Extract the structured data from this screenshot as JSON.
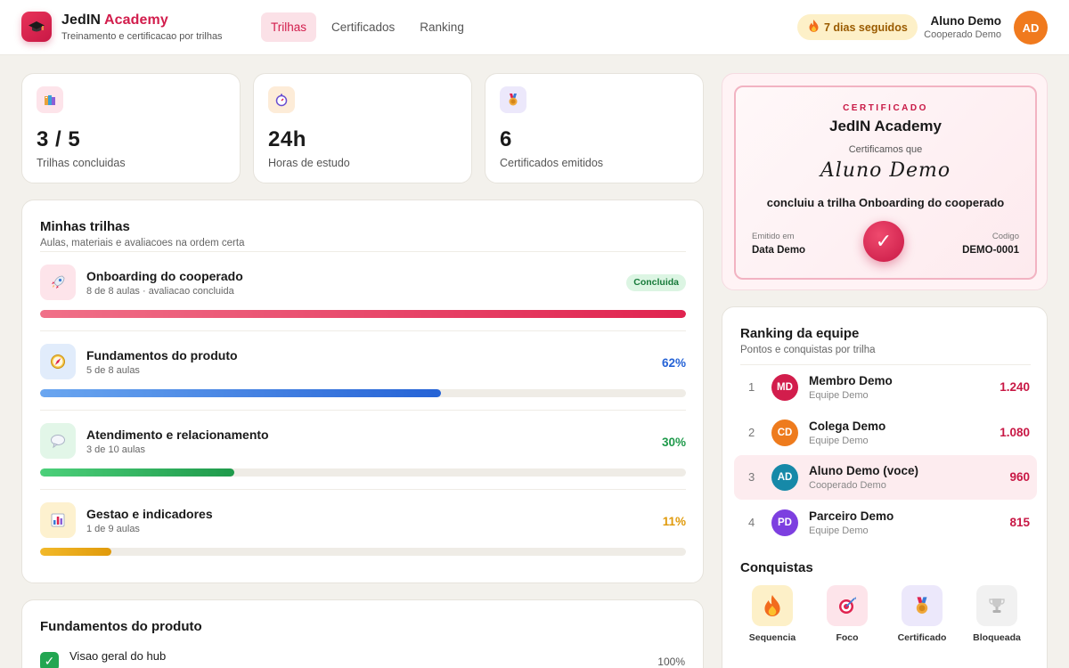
{
  "header": {
    "brand_name": "JedIN",
    "brand_accent": "Academy",
    "brand_subtitle": "Treinamento e certificacao por trilhas",
    "nav": [
      {
        "label": "Trilhas",
        "active": true
      },
      {
        "label": "Certificados",
        "active": false
      },
      {
        "label": "Ranking",
        "active": false
      }
    ],
    "streak": "7 dias seguidos",
    "user_name": "Aluno Demo",
    "user_role": "Cooperado Demo",
    "user_initials": "AD"
  },
  "stats": [
    {
      "value": "3 / 5",
      "label": "Trilhas concluidas",
      "icon": "books-icon"
    },
    {
      "value": "24h",
      "label": "Horas de estudo",
      "icon": "stopwatch-icon"
    },
    {
      "value": "6",
      "label": "Certificados emitidos",
      "icon": "medal-icon"
    }
  ],
  "trails_section": {
    "title": "Minhas trilhas",
    "subtitle": "Aulas, materiais e avaliacoes na ordem certa",
    "items": [
      {
        "title": "Onboarding do cooperado",
        "sub": "8 de 8 aulas · avaliacao concluida",
        "badge": "Concluida",
        "pct": "",
        "progress": 1.0,
        "icon": "rocket-icon",
        "color": "#e0234f"
      },
      {
        "title": "Fundamentos do produto",
        "sub": "5 de 8 aulas",
        "badge": "",
        "pct": "62%",
        "progress": 0.62,
        "icon": "compass-icon",
        "color": "#2563d6"
      },
      {
        "title": "Atendimento e relacionamento",
        "sub": "3 de 10 aulas",
        "badge": "",
        "pct": "30%",
        "progress": 0.3,
        "icon": "speech-bubble-icon",
        "color": "#1f9a4b"
      },
      {
        "title": "Gestao e indicadores",
        "sub": "1 de 9 aulas",
        "badge": "",
        "pct": "11%",
        "progress": 0.11,
        "icon": "bar-chart-icon",
        "color": "#e09a0b"
      }
    ]
  },
  "detail": {
    "title": "Fundamentos do produto",
    "lesson_title": "Visao geral do hub",
    "lesson_pct": "100%"
  },
  "certificate": {
    "kicker": "CERTIFICADO",
    "org": "JedIN Academy",
    "certifies": "Certificamos que",
    "name": "Aluno Demo",
    "line": "concluiu a trilha Onboarding do cooperado",
    "issued_label": "Emitido em",
    "issued_value": "Data Demo",
    "code_label": "Codigo",
    "code_value": "DEMO-0001"
  },
  "ranking": {
    "title": "Ranking da equipe",
    "subtitle": "Pontos e conquistas por trilha",
    "rows": [
      {
        "pos": "1",
        "initials": "MD",
        "name": "Membro Demo",
        "sub": "Equipe Demo",
        "points": "1.240",
        "color": "#d21d4c",
        "me": false
      },
      {
        "pos": "2",
        "initials": "CD",
        "name": "Colega Demo",
        "sub": "Equipe Demo",
        "points": "1.080",
        "color": "#ee7b1d",
        "me": false
      },
      {
        "pos": "3",
        "initials": "AD",
        "name": "Aluno Demo (voce)",
        "sub": "Cooperado Demo",
        "points": "960",
        "color": "#1689a8",
        "me": true
      },
      {
        "pos": "4",
        "initials": "PD",
        "name": "Parceiro Demo",
        "sub": "Equipe Demo",
        "points": "815",
        "color": "#7d3fe0",
        "me": false
      }
    ]
  },
  "achievements": {
    "title": "Conquistas",
    "items": [
      {
        "label": "Sequencia",
        "icon": "fire-icon"
      },
      {
        "label": "Foco",
        "icon": "target-icon"
      },
      {
        "label": "Certificado",
        "icon": "medal-icon"
      },
      {
        "label": "Bloqueada",
        "icon": "locked-trophy-icon"
      }
    ]
  }
}
